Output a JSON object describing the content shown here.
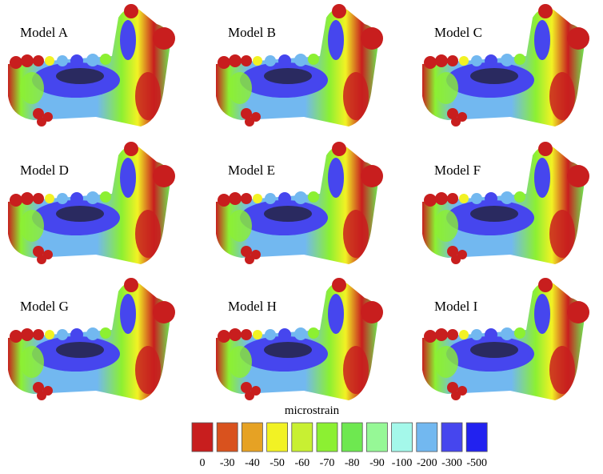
{
  "panels": [
    {
      "label": "Model A"
    },
    {
      "label": "Model B"
    },
    {
      "label": "Model C"
    },
    {
      "label": "Model D"
    },
    {
      "label": "Model E"
    },
    {
      "label": "Model F"
    },
    {
      "label": "Model G"
    },
    {
      "label": "Model H"
    },
    {
      "label": "Model I"
    }
  ],
  "legend": {
    "title": "microstrain",
    "items": [
      {
        "label": "0",
        "color": "#c81e1e"
      },
      {
        "label": "-30",
        "color": "#d9521e"
      },
      {
        "label": "-40",
        "color": "#e6a224"
      },
      {
        "label": "-50",
        "color": "#f2f224"
      },
      {
        "label": "-60",
        "color": "#c8f032"
      },
      {
        "label": "-70",
        "color": "#8cf032"
      },
      {
        "label": "-80",
        "color": "#6ee850"
      },
      {
        "label": "-90",
        "color": "#96f896"
      },
      {
        "label": "-100",
        "color": "#a4f8ea"
      },
      {
        "label": "-200",
        "color": "#72b8f0"
      },
      {
        "label": "-300",
        "color": "#4646ee"
      },
      {
        "label": "-500",
        "color": "#2222f0"
      }
    ]
  }
}
